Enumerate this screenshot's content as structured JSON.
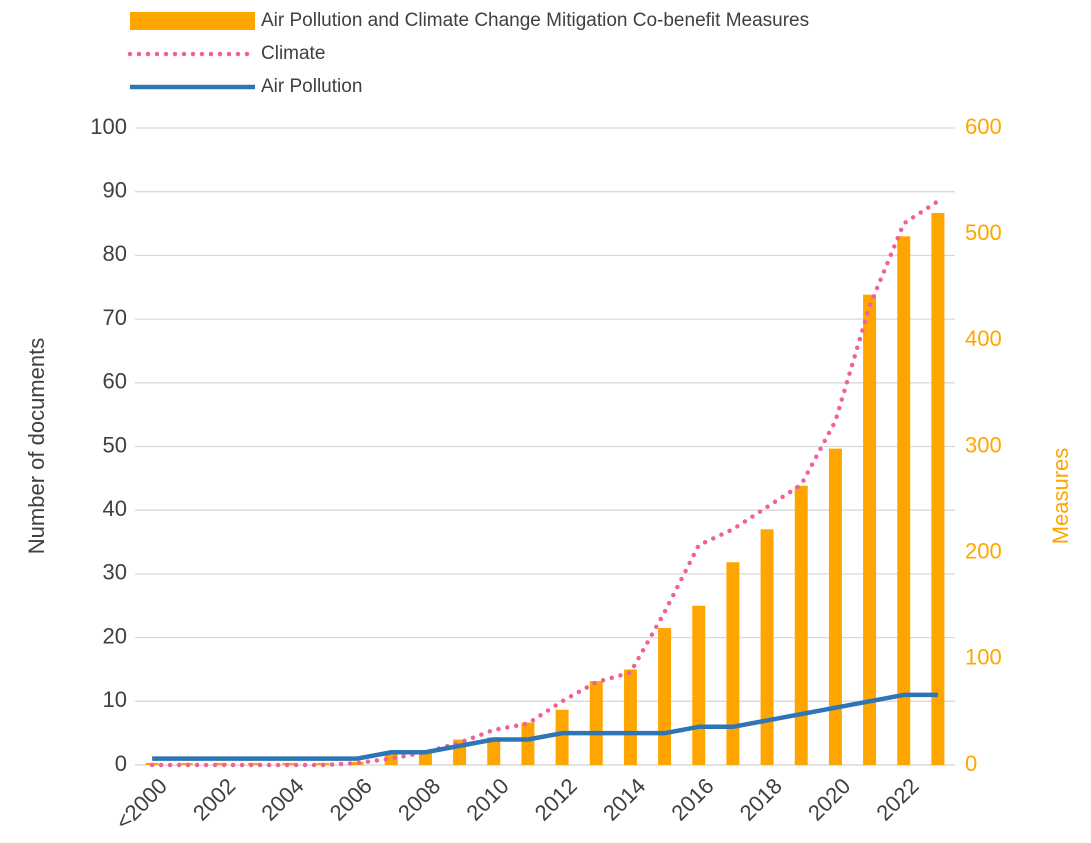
{
  "chart_data": {
    "type": "bar",
    "categories": [
      "<2000",
      null,
      "2002",
      null,
      "2004",
      null,
      "2006",
      null,
      "2008",
      null,
      "2010",
      null,
      "2012",
      null,
      "2014",
      null,
      "2016",
      null,
      "2018",
      null,
      "2020",
      null,
      "2022",
      null
    ],
    "series": [
      {
        "name": "Air Pollution and Climate Change Mitigation Co-benefit Measures",
        "type": "bar",
        "axis": "y2",
        "color": "#ffa500",
        "values": [
          2,
          2,
          2,
          2,
          2,
          2,
          3,
          10,
          12,
          24,
          26,
          40,
          52,
          79,
          90,
          129,
          150,
          191,
          222,
          263,
          298,
          443,
          498,
          520
        ]
      },
      {
        "name": "Climate",
        "type": "line",
        "style": "dotted",
        "color": "#f0609e",
        "values": [
          0,
          0,
          0,
          0,
          0,
          0,
          0.3,
          1,
          2,
          3.5,
          5.5,
          6.5,
          10,
          13,
          14.5,
          24,
          34.5,
          37,
          40.5,
          44,
          54,
          72,
          85,
          88.5
        ]
      },
      {
        "name": "Air Pollution",
        "type": "line",
        "style": "solid",
        "color": "#2e75b6",
        "values": [
          1,
          1,
          1,
          1,
          1,
          1,
          1,
          2,
          2,
          3,
          4,
          4,
          5,
          5,
          5,
          5,
          6,
          6,
          7,
          8,
          9,
          10,
          11,
          11
        ]
      }
    ],
    "y_label": "Number of documents",
    "y2_label": "Measures",
    "y2_color": "#ffa500",
    "ylim": [
      0,
      100
    ],
    "yticks": [
      0,
      10,
      20,
      30,
      40,
      50,
      60,
      70,
      80,
      90,
      100
    ],
    "y2lim": [
      0,
      600
    ],
    "y2ticks": [
      0,
      100,
      200,
      300,
      400,
      500,
      600
    ],
    "grid": true
  }
}
